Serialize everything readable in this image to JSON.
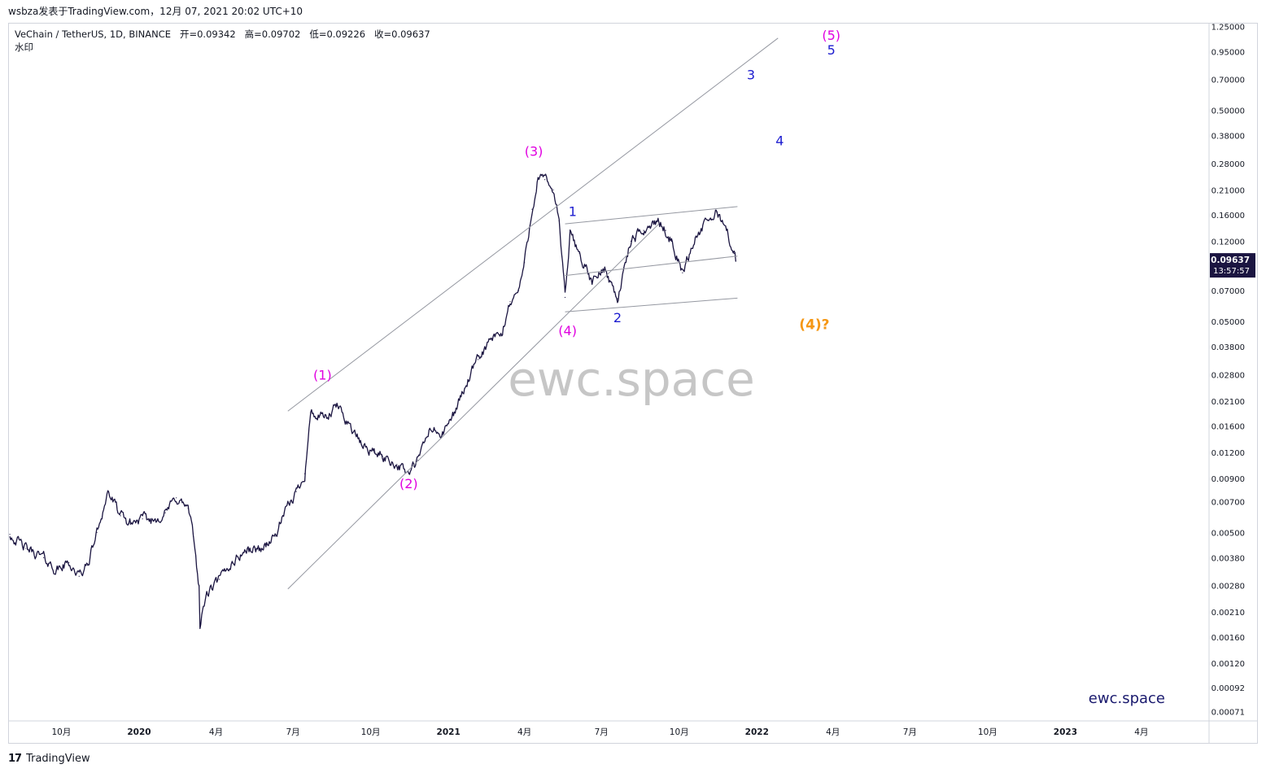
{
  "header": {
    "published_line": "wsbza发表于TradingView.com，12月 07, 2021 20:02 UTC+10"
  },
  "legend": {
    "symbol_line": "VeChain / TetherUS, 1D, BINANCE",
    "ohlc": {
      "open_label": "开",
      "open": "0.09342",
      "high_label": "高",
      "high": "0.09702",
      "low_label": "低",
      "low": "0.09226",
      "close_label": "收",
      "close": "0.09637"
    },
    "watermark_label": "水印"
  },
  "watermark_center": "ewc.space",
  "watermark_corner": "ewc.space",
  "price_tag": {
    "price": "0.09637",
    "countdown": "13:57:57"
  },
  "footer": {
    "brand": "TradingView",
    "logo_glyph": "17"
  },
  "colors": {
    "candle": "#1b1541",
    "wave_magenta": "#e000e0",
    "wave_blue": "#1c1ccf",
    "wave_orange": "#f59714",
    "channel_line": "#9598a1",
    "price_tag_bg": "#1b1541",
    "corner_watermark": "#1a1a6e"
  },
  "chart_data": {
    "type": "line",
    "title": "",
    "xlabel": "",
    "ylabel": "",
    "y_scale": "log",
    "ylim": [
      0.00064,
      1.3
    ],
    "xlim": [
      "2019-07-30",
      "2023-06-20"
    ],
    "grid": false,
    "x_tick_labels": [
      {
        "label": "10月",
        "date": "2019-10-01"
      },
      {
        "label": "2020",
        "date": "2020-01-01"
      },
      {
        "label": "4月",
        "date": "2020-04-01"
      },
      {
        "label": "7月",
        "date": "2020-07-01"
      },
      {
        "label": "10月",
        "date": "2020-10-01"
      },
      {
        "label": "2021",
        "date": "2021-01-01"
      },
      {
        "label": "4月",
        "date": "2021-04-01"
      },
      {
        "label": "7月",
        "date": "2021-07-01"
      },
      {
        "label": "10月",
        "date": "2021-10-01"
      },
      {
        "label": "2022",
        "date": "2022-01-01"
      },
      {
        "label": "4月",
        "date": "2022-04-01"
      },
      {
        "label": "7月",
        "date": "2022-07-01"
      },
      {
        "label": "10月",
        "date": "2022-10-01"
      },
      {
        "label": "2023",
        "date": "2023-01-01"
      },
      {
        "label": "4月",
        "date": "2023-04-01"
      }
    ],
    "y_tick_labels": [
      "1.25000",
      "0.95000",
      "0.70000",
      "0.50000",
      "0.38000",
      "0.28000",
      "0.21000",
      "0.16000",
      "0.12000",
      "0.07000",
      "0.05000",
      "0.03800",
      "0.02800",
      "0.02100",
      "0.01600",
      "0.01200",
      "0.00900",
      "0.00700",
      "0.00500",
      "0.00380",
      "0.00280",
      "0.00210",
      "0.00160",
      "0.00120",
      "0.00092",
      "0.00071"
    ],
    "series": [
      {
        "x": [
          "2019-08-01",
          "2019-08-20",
          "2019-09-10",
          "2019-09-25",
          "2019-10-10",
          "2019-10-22",
          "2019-11-01",
          "2019-11-12",
          "2019-11-25",
          "2019-12-10",
          "2019-12-20",
          "2020-01-05",
          "2020-01-18",
          "2020-02-01",
          "2020-02-14",
          "2020-02-28",
          "2020-03-05",
          "2020-03-12",
          "2020-03-13",
          "2020-03-20",
          "2020-04-05",
          "2020-04-20",
          "2020-05-05",
          "2020-05-25",
          "2020-06-10",
          "2020-06-20",
          "2020-07-05",
          "2020-07-15",
          "2020-07-22",
          "2020-08-01",
          "2020-08-12",
          "2020-08-22",
          "2020-09-05",
          "2020-09-20",
          "2020-10-05",
          "2020-10-15",
          "2020-11-01",
          "2020-11-15",
          "2020-11-26",
          "2020-12-10",
          "2020-12-25",
          "2021-01-05",
          "2021-01-20",
          "2021-02-05",
          "2021-02-20",
          "2021-03-05",
          "2021-03-15",
          "2021-03-25",
          "2021-04-01",
          "2021-04-10",
          "2021-04-17",
          "2021-04-25",
          "2021-05-05",
          "2021-05-12",
          "2021-05-19",
          "2021-05-25",
          "2021-06-05",
          "2021-06-20",
          "2021-07-05",
          "2021-07-20",
          "2021-08-05",
          "2021-08-20",
          "2021-09-05",
          "2021-09-15",
          "2021-09-22",
          "2021-10-05",
          "2021-10-20",
          "2021-11-05",
          "2021-11-15",
          "2021-11-25",
          "2021-12-05",
          "2021-12-07"
        ],
        "values": [
          0.0049,
          0.0042,
          0.0038,
          0.0033,
          0.0036,
          0.0031,
          0.0035,
          0.005,
          0.0078,
          0.006,
          0.0055,
          0.0058,
          0.0057,
          0.0062,
          0.0073,
          0.0065,
          0.0048,
          0.0028,
          0.0018,
          0.0025,
          0.003,
          0.0036,
          0.0041,
          0.0042,
          0.0048,
          0.006,
          0.0078,
          0.0095,
          0.0185,
          0.0175,
          0.0175,
          0.02,
          0.0165,
          0.013,
          0.012,
          0.0115,
          0.0105,
          0.0095,
          0.011,
          0.0155,
          0.0145,
          0.0175,
          0.024,
          0.033,
          0.041,
          0.043,
          0.062,
          0.07,
          0.095,
          0.17,
          0.24,
          0.235,
          0.21,
          0.15,
          0.065,
          0.13,
          0.105,
          0.076,
          0.09,
          0.064,
          0.12,
          0.135,
          0.15,
          0.135,
          0.12,
          0.085,
          0.125,
          0.15,
          0.165,
          0.14,
          0.105,
          0.0964
        ]
      }
    ],
    "annotations": [
      {
        "text": "(1)",
        "color": "magenta",
        "x": "2020-08-05",
        "y": 0.0265
      },
      {
        "text": "(2)",
        "color": "magenta",
        "x": "2020-11-15",
        "y": 0.0081
      },
      {
        "text": "(3)",
        "color": "magenta",
        "x": "2021-04-12",
        "y": 0.305
      },
      {
        "text": "(4)",
        "color": "magenta",
        "x": "2021-05-22",
        "y": 0.043
      },
      {
        "text": "(5)",
        "color": "magenta",
        "x": "2022-03-30",
        "y": 1.08
      },
      {
        "text": "1",
        "color": "blue",
        "x": "2021-05-28",
        "y": 0.158
      },
      {
        "text": "2",
        "color": "blue",
        "x": "2021-07-20",
        "y": 0.0495
      },
      {
        "text": "3",
        "color": "blue",
        "x": "2021-12-25",
        "y": 0.7
      },
      {
        "text": "4",
        "color": "blue",
        "x": "2022-01-28",
        "y": 0.342
      },
      {
        "text": "5",
        "color": "blue",
        "x": "2022-03-30",
        "y": 0.92
      },
      {
        "text": "(4)?",
        "color": "orange",
        "x": "2022-03-10",
        "y": 0.046
      }
    ],
    "channel_lines": [
      {
        "from": {
          "x": "2020-06-25",
          "y": 0.0188
        },
        "to": {
          "x": "2022-01-26",
          "y": 1.1
        }
      },
      {
        "from": {
          "x": "2020-06-25",
          "y": 0.0027
        },
        "to": {
          "x": "2021-09-07",
          "y": 0.145
        }
      },
      {
        "from": {
          "x": "2021-05-19",
          "y": 0.145
        },
        "to": {
          "x": "2021-12-09",
          "y": 0.175
        }
      },
      {
        "from": {
          "x": "2021-05-19",
          "y": 0.0825
        },
        "to": {
          "x": "2021-12-09",
          "y": 0.102
        }
      },
      {
        "from": {
          "x": "2021-05-19",
          "y": 0.0555
        },
        "to": {
          "x": "2021-12-09",
          "y": 0.0645
        }
      }
    ]
  }
}
